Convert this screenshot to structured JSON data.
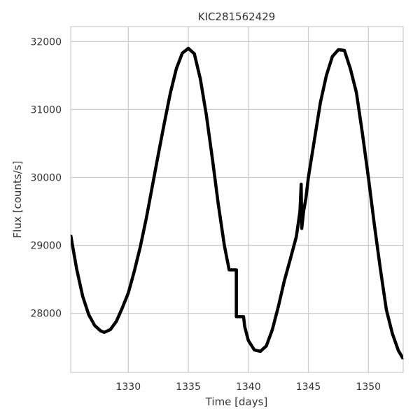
{
  "chart_data": {
    "type": "line",
    "title": "KIC281562429",
    "xlabel": "Time [days]",
    "ylabel": "Flux [counts/s]",
    "xlim": [
      1325.2,
      1352.9
    ],
    "ylim": [
      27130,
      32220
    ],
    "xticks": [
      1330,
      1335,
      1340,
      1345,
      1350
    ],
    "yticks": [
      28000,
      29000,
      30000,
      31000,
      32000
    ],
    "grid": true,
    "colors": {
      "line": "#000000",
      "grid": "#cccccc",
      "frame": "#cccccc",
      "background": "#ffffff"
    },
    "series": [
      {
        "x": [
          1325.2,
          1325.7,
          1326.2,
          1326.7,
          1327.2,
          1327.7,
          1328.0,
          1328.5,
          1329.0,
          1329.5,
          1330.0,
          1330.5,
          1331.0,
          1331.5,
          1332.0,
          1332.5,
          1333.0,
          1333.5,
          1334.0,
          1334.5,
          1335.0,
          1335.5,
          1336.0,
          1336.5,
          1337.0,
          1337.5,
          1338.0,
          1338.4,
          1338.6,
          1339.0,
          1339.0,
          1339.6,
          1339.7,
          1340.0,
          1340.5,
          1341.0,
          1341.5,
          1342.0,
          1342.5,
          1343.0,
          1343.5,
          1344.0,
          1344.3,
          1344.4,
          1344.45,
          1344.6,
          1344.8,
          1345.0,
          1345.5,
          1346.0,
          1346.5,
          1347.0,
          1347.5,
          1348.0,
          1348.5,
          1349.0,
          1349.5,
          1350.0,
          1350.5,
          1351.0,
          1351.5,
          1352.0,
          1352.5,
          1352.9
        ],
        "y": [
          29150,
          28650,
          28250,
          27980,
          27820,
          27740,
          27720,
          27760,
          27880,
          28080,
          28300,
          28620,
          28980,
          29400,
          29870,
          30340,
          30800,
          31240,
          31600,
          31830,
          31900,
          31820,
          31450,
          30920,
          30280,
          29600,
          29000,
          28640,
          28640,
          28640,
          27950,
          27950,
          27800,
          27600,
          27460,
          27440,
          27520,
          27760,
          28100,
          28480,
          28800,
          29130,
          29500,
          29900,
          29250,
          29500,
          29700,
          30000,
          30550,
          31100,
          31500,
          31780,
          31880,
          31870,
          31600,
          31250,
          30650,
          30000,
          29300,
          28650,
          28050,
          27700,
          27450,
          27330
        ]
      }
    ]
  }
}
